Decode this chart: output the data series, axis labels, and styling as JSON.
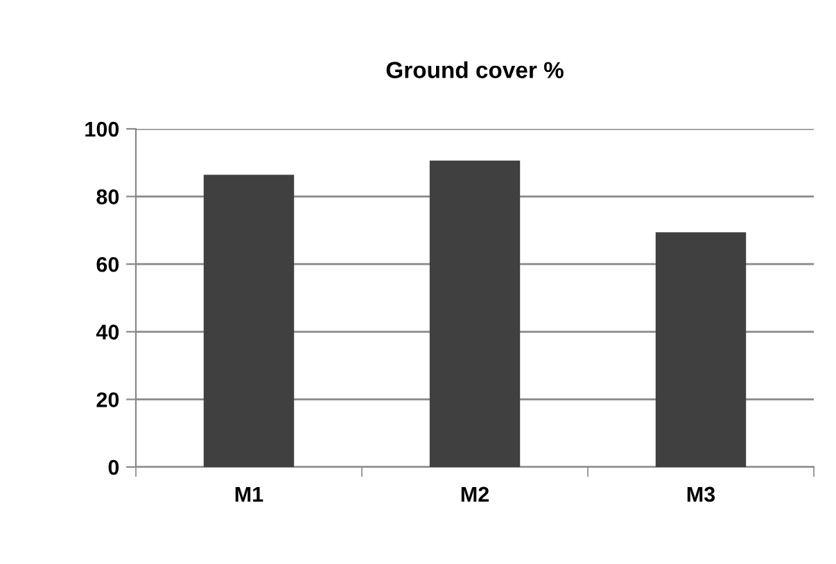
{
  "chart_data": {
    "type": "bar",
    "title": "Ground cover %",
    "categories": [
      "M1",
      "M2",
      "M3"
    ],
    "values": [
      86.4,
      90.6,
      69.4
    ],
    "color": "#404040",
    "ylim": [
      0,
      100
    ],
    "yticks": [
      0,
      20,
      40,
      60,
      80,
      100
    ],
    "grid": "y",
    "legend": false
  }
}
